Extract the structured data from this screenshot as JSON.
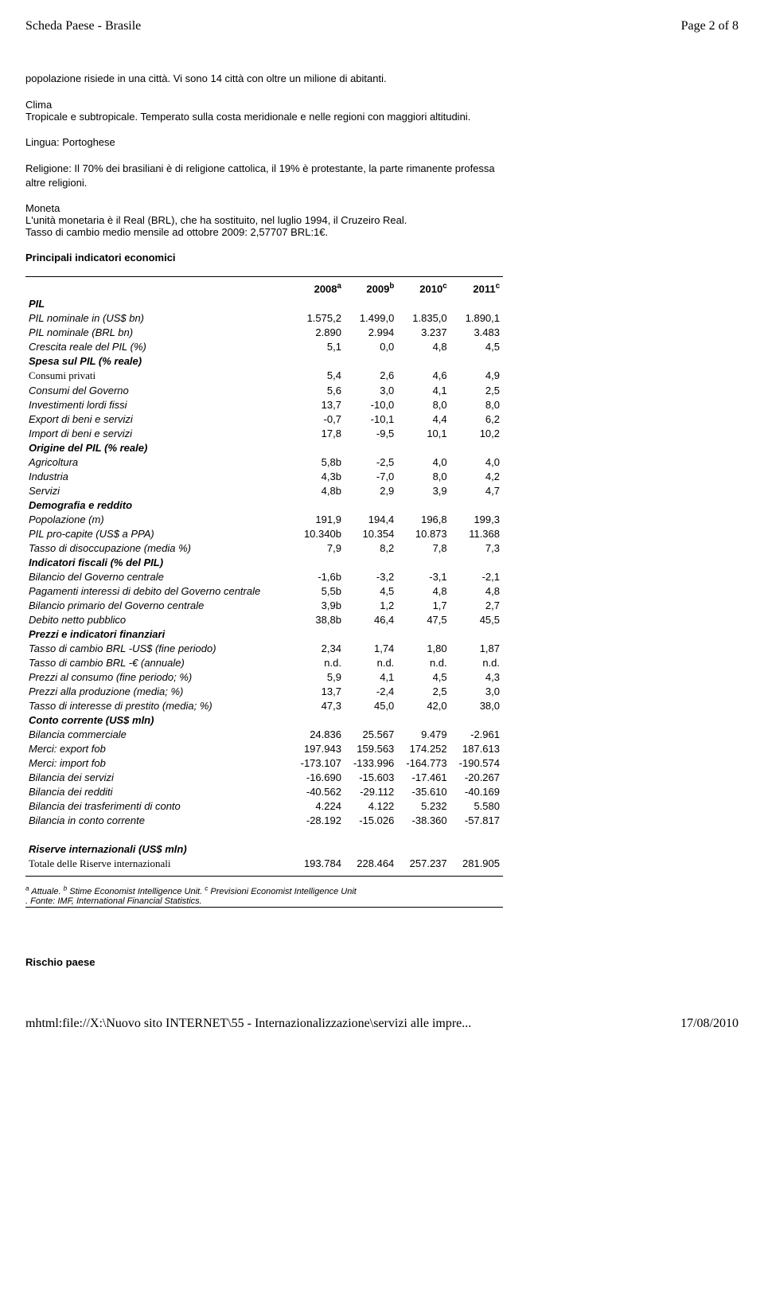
{
  "header": {
    "left": "Scheda Paese - Brasile",
    "right": "Page 2 of 8"
  },
  "intro": {
    "p1": "popolazione risiede in una città. Vi sono 14 città con oltre un milione di abitanti.",
    "clima_h": "Clima",
    "clima_t": "Tropicale e subtropicale. Temperato sulla costa meridionale e nelle regioni con maggiori altitudini.",
    "lingua": "Lingua: Portoghese",
    "religione": "Religione: Il 70% dei brasiliani è di religione cattolica, il 19% è protestante, la parte rimanente professa altre religioni.",
    "moneta_h": "Moneta",
    "moneta_t1": "L'unità monetaria è il Real (BRL), che ha sostituito, nel luglio 1994, il Cruzeiro Real.",
    "moneta_t2": "Tasso di cambio medio mensile ad ottobre 2009: 2,57707 BRL:1€."
  },
  "table": {
    "title": "Principali indicatori economici",
    "cols": [
      "2008",
      "2009",
      "2010",
      "2011"
    ],
    "colsup": [
      "a",
      "b",
      "c",
      "c"
    ],
    "rows": [
      {
        "label": "PIL",
        "sect": true
      },
      {
        "label": "PIL nominale in (US$ bn)",
        "v": [
          "1.575,2",
          "1.499,0",
          "1.835,0",
          "1.890,1"
        ]
      },
      {
        "label": "PIL nominale (BRL bn)",
        "v": [
          "2.890",
          "2.994",
          "3.237",
          "3.483"
        ]
      },
      {
        "label": "Crescita reale del PIL (%)",
        "v": [
          "5,1",
          "0,0",
          "4,8",
          "4,5"
        ]
      },
      {
        "label": "Spesa sul PIL (% reale)",
        "sect": true
      },
      {
        "label": "Consumi privati",
        "nonit": true,
        "v": [
          "5,4",
          "2,6",
          "4,6",
          "4,9"
        ]
      },
      {
        "label": "Consumi del Governo",
        "v": [
          "5,6",
          "3,0",
          "4,1",
          "2,5"
        ]
      },
      {
        "label": "Investimenti lordi fissi",
        "v": [
          "13,7",
          "-10,0",
          "8,0",
          "8,0"
        ]
      },
      {
        "label": "Export di beni e servizi",
        "v": [
          "-0,7",
          "-10,1",
          "4,4",
          "6,2"
        ]
      },
      {
        "label": "Import di beni e servizi",
        "v": [
          "17,8",
          "-9,5",
          "10,1",
          "10,2"
        ]
      },
      {
        "label": "Origine del PIL (% reale)",
        "sect": true
      },
      {
        "label": "Agricoltura",
        "v": [
          "5,8b",
          "-2,5",
          "4,0",
          "4,0"
        ]
      },
      {
        "label": "Industria",
        "v": [
          "4,3b",
          "-7,0",
          "8,0",
          "4,2"
        ]
      },
      {
        "label": "Servizi",
        "v": [
          "4,8b",
          "2,9",
          "3,9",
          "4,7"
        ]
      },
      {
        "label": "Demografia e reddito",
        "sect": true
      },
      {
        "label": "Popolazione (m)",
        "v": [
          "191,9",
          "194,4",
          "196,8",
          "199,3"
        ]
      },
      {
        "label": "PIL pro-capite (US$ a PPA)",
        "v": [
          "10.340b",
          "10.354",
          "10.873",
          "11.368"
        ]
      },
      {
        "label": "Tasso di disoccupazione (media %)",
        "v": [
          "7,9",
          "8,2",
          "7,8",
          "7,3"
        ]
      },
      {
        "label": "Indicatori fiscali (% del PIL)",
        "sect": true
      },
      {
        "label": "Bilancio del Governo centrale",
        "v": [
          "-1,6b",
          "-3,2",
          "-3,1",
          "-2,1"
        ]
      },
      {
        "label": "Pagamenti interessi di debito del Governo centrale",
        "v": [
          "5,5b",
          "4,5",
          "4,8",
          "4,8"
        ]
      },
      {
        "label": "Bilancio primario del Governo centrale",
        "v": [
          "3,9b",
          "1,2",
          "1,7",
          "2,7"
        ]
      },
      {
        "label": "Debito netto pubblico",
        "v": [
          "38,8b",
          "46,4",
          "47,5",
          "45,5"
        ]
      },
      {
        "label": "Prezzi e indicatori finanziari",
        "sect": true
      },
      {
        "label": "Tasso di cambio BRL -US$ (fine periodo)",
        "v": [
          "2,34",
          "1,74",
          "1,80",
          "1,87"
        ]
      },
      {
        "label": "Tasso di cambio BRL -€ (annuale)",
        "v": [
          "n.d.",
          "n.d.",
          "n.d.",
          "n.d."
        ]
      },
      {
        "label": "Prezzi al consumo (fine periodo; %)",
        "v": [
          "5,9",
          "4,1",
          "4,5",
          "4,3"
        ]
      },
      {
        "label": "Prezzi alla produzione (media; %)",
        "v": [
          "13,7",
          "-2,4",
          "2,5",
          "3,0"
        ]
      },
      {
        "label": "Tasso di interesse di prestito (media; %)",
        "v": [
          "47,3",
          "45,0",
          "42,0",
          "38,0"
        ]
      },
      {
        "label": "Conto corrente (US$ mln)",
        "sect": true
      },
      {
        "label": "Bilancia commerciale",
        "v": [
          "24.836",
          "25.567",
          "9.479",
          "-2.961"
        ]
      },
      {
        "label": "Merci: export fob",
        "v": [
          "197.943",
          "159.563",
          "174.252",
          "187.613"
        ]
      },
      {
        "label": "Merci: import fob",
        "v": [
          "-173.107",
          "-133.996",
          "-164.773",
          "-190.574"
        ]
      },
      {
        "label": "Bilancia dei servizi",
        "v": [
          "-16.690",
          "-15.603",
          "-17.461",
          "-20.267"
        ]
      },
      {
        "label": "Bilancia dei redditi",
        "v": [
          "-40.562",
          "-29.112",
          "-35.610",
          "-40.169"
        ]
      },
      {
        "label": "Bilancia dei trasferimenti di conto",
        "v": [
          "4.224",
          "4.122",
          "5.232",
          "5.580"
        ]
      },
      {
        "label": "Bilancia in conto corrente",
        "v": [
          "-28.192",
          "-15.026",
          "-38.360",
          "-57.817"
        ]
      },
      {
        "spacer": true
      },
      {
        "label": "Riserve internazionali (US$ mln)",
        "sect": true
      },
      {
        "label": "Totale delle Riserve internazionali",
        "nonit": true,
        "v": [
          "193.784",
          "228.464",
          "257.237",
          "281.905"
        ]
      }
    ],
    "footnote_a": "a Attuale. b Stime Economist Intelligence Unit. c Previsioni Economist Intelligence Unit",
    "footnote_b": ". Fonte: IMF, International Financial Statistics."
  },
  "risk": "Rischio paese",
  "footer": {
    "left": "mhtml:file://X:\\Nuovo sito INTERNET\\55 - Internazionalizzazione\\servizi alle impre...",
    "right": "17/08/2010"
  }
}
